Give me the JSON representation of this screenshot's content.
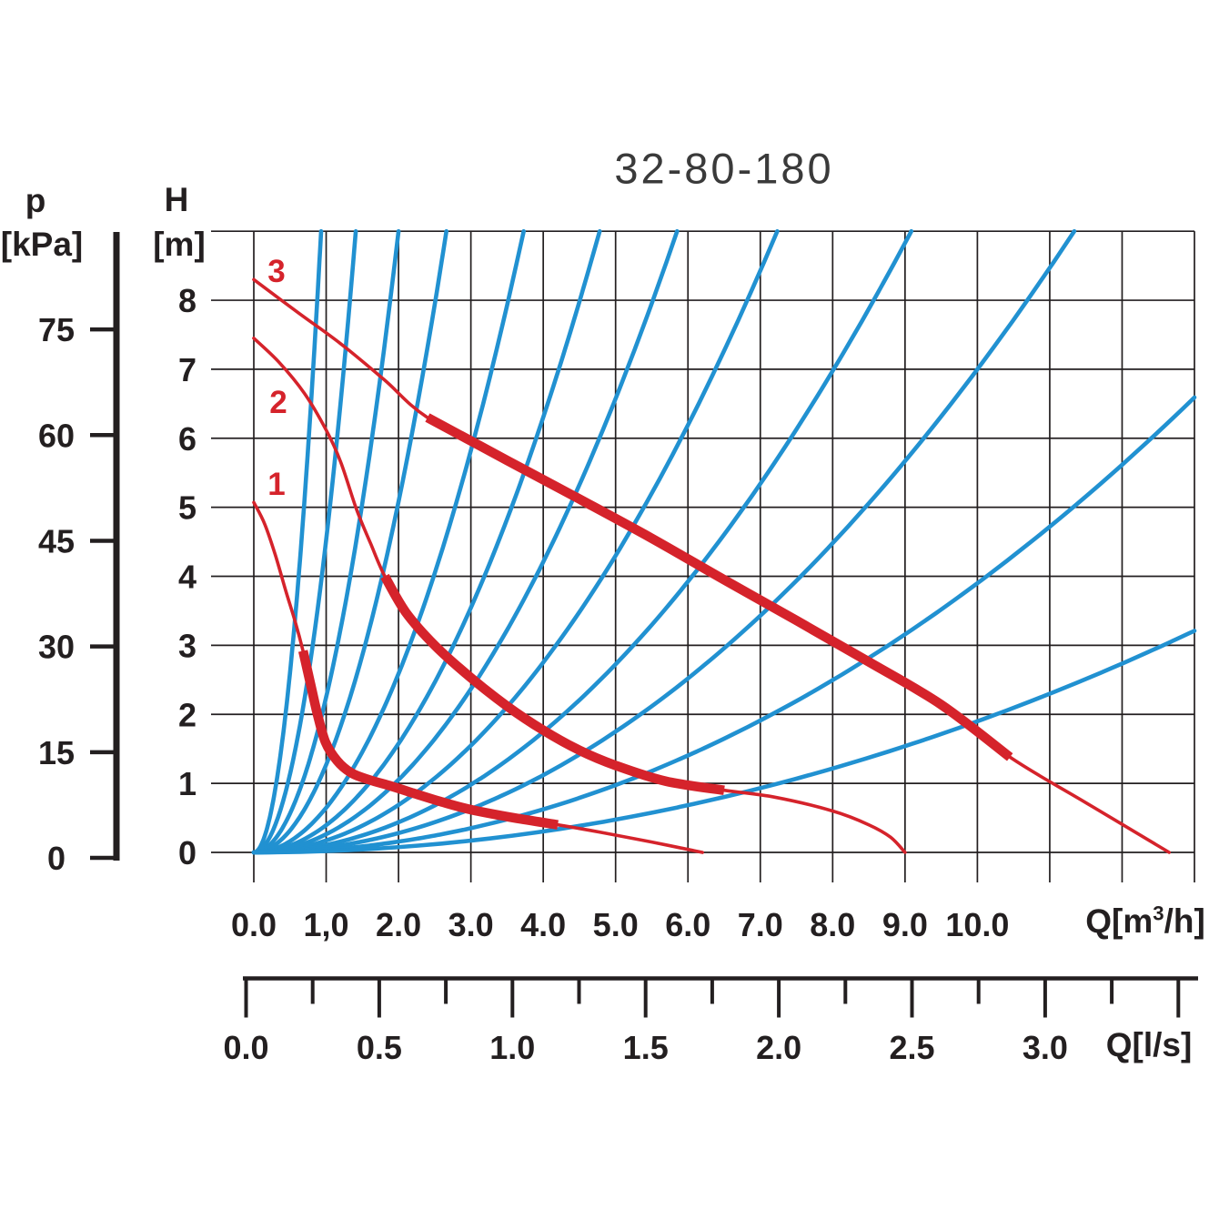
{
  "title": "32-80-180",
  "colors": {
    "pump_curve_red": "#d5232b",
    "system_curve_blue": "#2191d1",
    "grid_black": "#231f20",
    "text": "#231f20",
    "title_text": "#3a3a3a"
  },
  "pressure_axis": {
    "symbol": "p",
    "unit": "[kPa]",
    "tick_values": [
      0,
      15,
      30,
      45,
      60,
      75
    ],
    "tick_labels": [
      "0",
      "15",
      "30",
      "45",
      "60",
      "75"
    ]
  },
  "head_axis": {
    "symbol": "H",
    "unit": "[m]",
    "tick_values": [
      0,
      1,
      2,
      3,
      4,
      5,
      6,
      7,
      8
    ],
    "tick_labels": [
      "0",
      "1",
      "2",
      "3",
      "4",
      "5",
      "6",
      "7",
      "8"
    ]
  },
  "flow_axis_m3h": {
    "unit_pre": "Q[m",
    "unit_sup": "3",
    "unit_post": "/h]",
    "tick_values": [
      0,
      1,
      2,
      3,
      4,
      5,
      6,
      7,
      8,
      9,
      10
    ],
    "tick_labels": [
      "0.0",
      "1,0",
      "2.0",
      "3.0",
      "4.0",
      "5.0",
      "6.0",
      "7.0",
      "8.0",
      "9.0",
      "10.0"
    ]
  },
  "flow_axis_ls": {
    "unit": "Q[l/s]",
    "tick_values": [
      0,
      0.5,
      1,
      1.5,
      2,
      2.5,
      3
    ],
    "tick_labels": [
      "0.0",
      "0.5",
      "1.0",
      "1.5",
      "2.0",
      "2.5",
      "3.0"
    ]
  },
  "chart_data": {
    "type": "line",
    "title": "32-80-180",
    "x_axis_primary": {
      "label": "Q[m³/h]",
      "range": [
        0,
        13
      ],
      "gridline_step": 1,
      "tick_values": [
        0,
        1,
        2,
        3,
        4,
        5,
        6,
        7,
        8,
        9,
        10
      ],
      "tick_labels": [
        "0.0",
        "1,0",
        "2.0",
        "3.0",
        "4.0",
        "5.0",
        "6.0",
        "7.0",
        "8.0",
        "9.0",
        "10.0"
      ]
    },
    "x_axis_secondary": {
      "label": "Q[l/s]",
      "range": [
        0,
        3.5
      ],
      "major_tick_step": 0.5,
      "minor_tick_step": 0.25,
      "tick_values": [
        0,
        0.5,
        1,
        1.5,
        2,
        2.5,
        3
      ],
      "tick_labels": [
        "0.0",
        "0.5",
        "1.0",
        "1.5",
        "2.0",
        "2.5",
        "3.0"
      ]
    },
    "y_axis_primary": {
      "label": "H [m]",
      "range": [
        0,
        9
      ],
      "gridline_step": 1,
      "tick_values": [
        0,
        1,
        2,
        3,
        4,
        5,
        6,
        7,
        8
      ]
    },
    "y_axis_secondary": {
      "label": "p [kPa]",
      "range": [
        0,
        89
      ],
      "tick_values": [
        0,
        15,
        30,
        45,
        60,
        75
      ]
    },
    "grid": true,
    "legend": "none",
    "series": [
      {
        "name": "speed-3",
        "label": "3",
        "color": "#d5232b",
        "bold_range": [
          2.4,
          10.45
        ],
        "points": [
          [
            0,
            8.3
          ],
          [
            0.6,
            7.83
          ],
          [
            1.2,
            7.37
          ],
          [
            1.8,
            6.85
          ],
          [
            2.4,
            6.3
          ],
          [
            3.5,
            5.68
          ],
          [
            4.5,
            5.12
          ],
          [
            5.5,
            4.55
          ],
          [
            6.5,
            3.95
          ],
          [
            7.5,
            3.36
          ],
          [
            8.5,
            2.76
          ],
          [
            9.5,
            2.14
          ],
          [
            10.45,
            1.38
          ],
          [
            11.5,
            0.72
          ],
          [
            12.65,
            0
          ]
        ]
      },
      {
        "name": "speed-2",
        "label": "2",
        "color": "#d5232b",
        "bold_range": [
          1.81,
          6.5
        ],
        "points": [
          [
            0,
            7.45
          ],
          [
            0.35,
            7.1
          ],
          [
            0.7,
            6.65
          ],
          [
            1,
            6.12
          ],
          [
            1.2,
            5.66
          ],
          [
            1.42,
            4.97
          ],
          [
            1.62,
            4.46
          ],
          [
            1.81,
            4
          ],
          [
            2.1,
            3.48
          ],
          [
            2.5,
            3
          ],
          [
            3,
            2.53
          ],
          [
            3.5,
            2.12
          ],
          [
            4,
            1.77
          ],
          [
            4.5,
            1.48
          ],
          [
            5,
            1.26
          ],
          [
            5.7,
            1.03
          ],
          [
            6.5,
            0.9
          ],
          [
            7.2,
            0.8
          ],
          [
            8,
            0.6
          ],
          [
            8.5,
            0.4
          ],
          [
            8.8,
            0.22
          ],
          [
            9,
            0
          ]
        ]
      },
      {
        "name": "speed-1",
        "label": "1",
        "color": "#d5232b",
        "bold_range": [
          0.68,
          4.2
        ],
        "points": [
          [
            0,
            5.07
          ],
          [
            0.15,
            4.76
          ],
          [
            0.3,
            4.3
          ],
          [
            0.45,
            3.76
          ],
          [
            0.57,
            3.35
          ],
          [
            0.68,
            2.92
          ],
          [
            0.78,
            2.46
          ],
          [
            0.88,
            2
          ],
          [
            0.99,
            1.6
          ],
          [
            1.15,
            1.33
          ],
          [
            1.35,
            1.15
          ],
          [
            1.6,
            1.05
          ],
          [
            1.9,
            0.96
          ],
          [
            2.2,
            0.86
          ],
          [
            2.6,
            0.73
          ],
          [
            3,
            0.62
          ],
          [
            3.6,
            0.5
          ],
          [
            4.2,
            0.4
          ],
          [
            4.8,
            0.29
          ],
          [
            5.5,
            0.15
          ],
          [
            6.2,
            0
          ]
        ]
      }
    ],
    "system_curves": {
      "model": "H = k·Q²",
      "color": "#2191d1",
      "k_values": [
        10.4,
        4.53,
        2.25,
        1.27,
        0.647,
        0.394,
        0.263,
        0.172,
        0.109,
        0.07,
        0.039,
        0.019
      ]
    }
  }
}
